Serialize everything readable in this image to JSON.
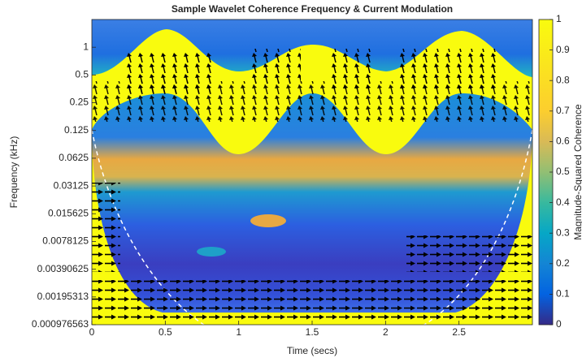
{
  "chart_data": {
    "type": "heatmap",
    "title": "Sample Wavelet Coherence Frequency & Current Modulation",
    "xlabel": "Time (secs)",
    "ylabel": "Frequency (kHz)",
    "xlim": [
      0,
      3
    ],
    "xticks": [
      0,
      0.5,
      1,
      1.5,
      2,
      2.5
    ],
    "ylim": [
      0.000976563,
      2
    ],
    "yscale": "log",
    "yticks": [
      0.000976563,
      0.00195313,
      0.00390625,
      0.0078125,
      0.015625,
      0.03125,
      0.0625,
      0.125,
      0.25,
      0.5,
      1
    ],
    "colorbar": {
      "label": "Magnitude-Squared Coherence",
      "lim": [
        0,
        1
      ],
      "ticks": [
        0,
        0.1,
        0.2,
        0.3,
        0.4,
        0.5,
        0.6,
        0.7,
        0.8,
        0.9,
        1
      ]
    }
  }
}
